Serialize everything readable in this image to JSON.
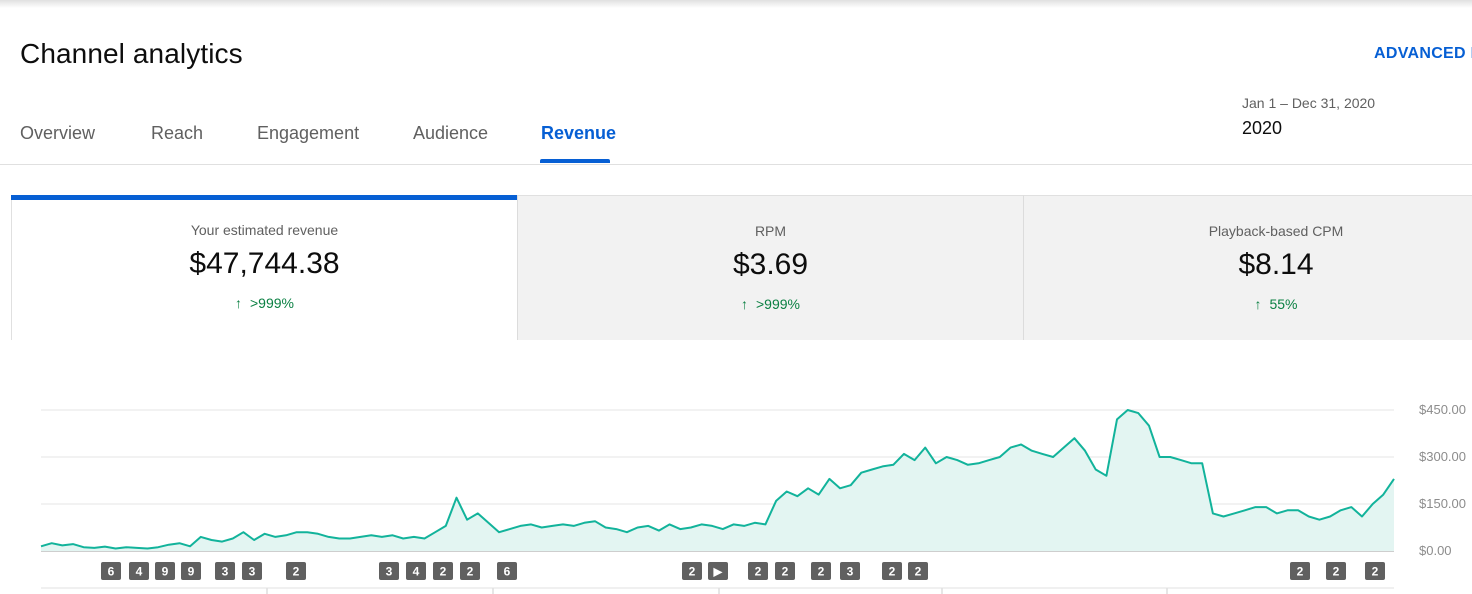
{
  "header": {
    "title": "Channel analytics",
    "advanced_link": "ADVANCED I"
  },
  "tabs": [
    {
      "label": "Overview",
      "active": false
    },
    {
      "label": "Reach",
      "active": false
    },
    {
      "label": "Engagement",
      "active": false
    },
    {
      "label": "Audience",
      "active": false
    },
    {
      "label": "Revenue",
      "active": true
    }
  ],
  "date_picker": {
    "range": "Jan 1 – Dec 31, 2020",
    "value": "2020"
  },
  "metrics": [
    {
      "label": "Your estimated revenue",
      "value": "$47,744.38",
      "change": ">999%",
      "direction": "up",
      "selected": true
    },
    {
      "label": "RPM",
      "value": "$3.69",
      "change": ">999%",
      "direction": "up",
      "selected": false
    },
    {
      "label": "Playback-based CPM",
      "value": "$8.14",
      "change": "55%",
      "direction": "up",
      "selected": false
    }
  ],
  "colors": {
    "accent": "#065fd4",
    "positive": "#0b8043",
    "line": "#12b39b",
    "fill": "#e3f5f2"
  },
  "chart_data": {
    "type": "area",
    "title": "",
    "xlabel": "",
    "ylabel": "",
    "y_ticks": [
      "$0.00",
      "$150.00",
      "$300.00",
      "$450.00"
    ],
    "ylim": [
      0,
      450
    ],
    "grid": true,
    "x_start": "2020-01-01",
    "x_end": "2020-12-31",
    "series": [
      {
        "values": [
          15,
          25,
          18,
          22,
          12,
          10,
          14,
          8,
          12,
          10,
          8,
          12,
          20,
          25,
          15,
          45,
          35,
          30,
          40,
          60,
          35,
          55,
          45,
          50,
          60,
          60,
          55,
          45,
          40,
          40,
          45,
          50,
          45,
          50,
          40,
          45,
          40,
          60,
          80,
          170,
          100,
          120,
          90,
          60,
          70,
          80,
          85,
          75,
          80,
          85,
          80,
          90,
          95,
          75,
          70,
          60,
          75,
          80,
          65,
          85,
          70,
          75,
          85,
          80,
          70,
          85,
          80,
          90,
          85,
          160,
          190,
          175,
          200,
          180,
          230,
          200,
          210,
          250,
          260,
          270,
          275,
          310,
          290,
          330,
          280,
          300,
          290,
          275,
          280,
          290,
          300,
          330,
          340,
          320,
          310,
          300,
          330,
          360,
          320,
          260,
          240,
          420,
          450,
          440,
          400,
          300,
          300,
          290,
          280,
          280,
          120,
          110,
          120,
          130,
          140,
          140,
          120,
          130,
          130,
          110,
          100,
          110,
          130,
          140,
          110,
          150,
          180,
          230
        ]
      }
    ],
    "annotations": [
      "6",
      "4",
      "9",
      "9",
      "3",
      "3",
      "2",
      "3",
      "4",
      "2",
      "2",
      "6",
      "2",
      "▶",
      "2",
      "2",
      "2",
      "3",
      "2",
      "2",
      "2",
      "2",
      "2"
    ]
  }
}
